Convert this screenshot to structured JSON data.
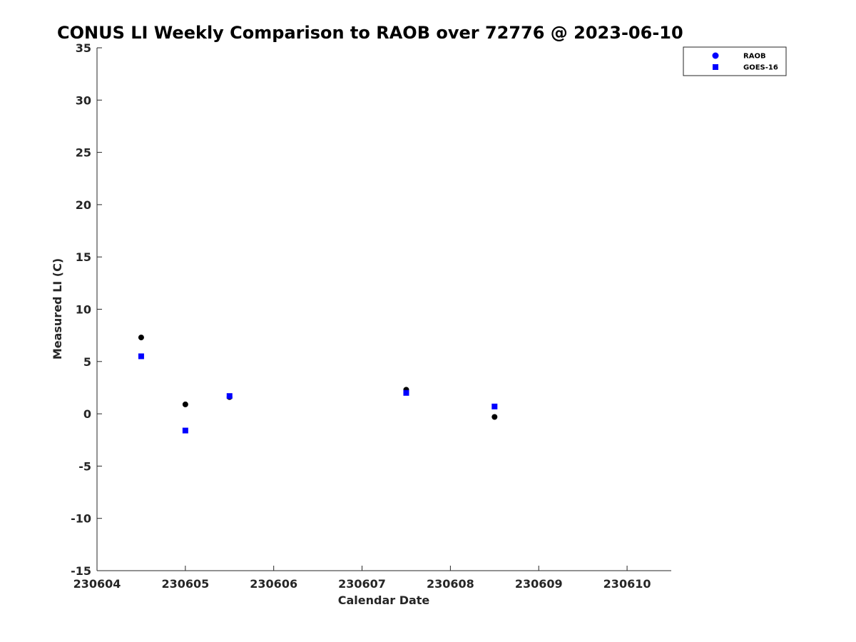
{
  "chart_data": {
    "type": "scatter",
    "title": "CONUS LI Weekly Comparison to RAOB over 72776 @ 2023-06-10",
    "xlabel": "Calendar Date",
    "ylabel": "Measured LI (C)",
    "xlim": [
      230604,
      230610.5
    ],
    "ylim": [
      -15,
      35
    ],
    "xticks": [
      230604,
      230605,
      230606,
      230607,
      230608,
      230609,
      230610
    ],
    "xtick_labels": [
      "230604",
      "230605",
      "230606",
      "230607",
      "230608",
      "230609",
      "230610"
    ],
    "yticks": [
      -15,
      -10,
      -5,
      0,
      5,
      10,
      15,
      20,
      25,
      30,
      35
    ],
    "ytick_labels": [
      "-15",
      "-10",
      "-5",
      "0",
      "5",
      "10",
      "15",
      "20",
      "25",
      "30",
      "35"
    ],
    "grid": false,
    "legend_position": "top-right",
    "series": [
      {
        "name": "RAOB",
        "marker": "circle",
        "legend_color": "#0000ff",
        "point_color": "#000000",
        "x": [
          230604.5,
          230605,
          230605.5,
          230607.5,
          230608.5
        ],
        "y": [
          7.3,
          0.9,
          1.6,
          2.3,
          -0.3
        ]
      },
      {
        "name": "GOES-16",
        "marker": "square",
        "legend_color": "#0000ff",
        "point_color": "#0000ff",
        "x": [
          230604.5,
          230605,
          230605.5,
          230607.5,
          230608.5
        ],
        "y": [
          5.5,
          -1.6,
          1.7,
          2.0,
          0.7
        ]
      }
    ]
  }
}
